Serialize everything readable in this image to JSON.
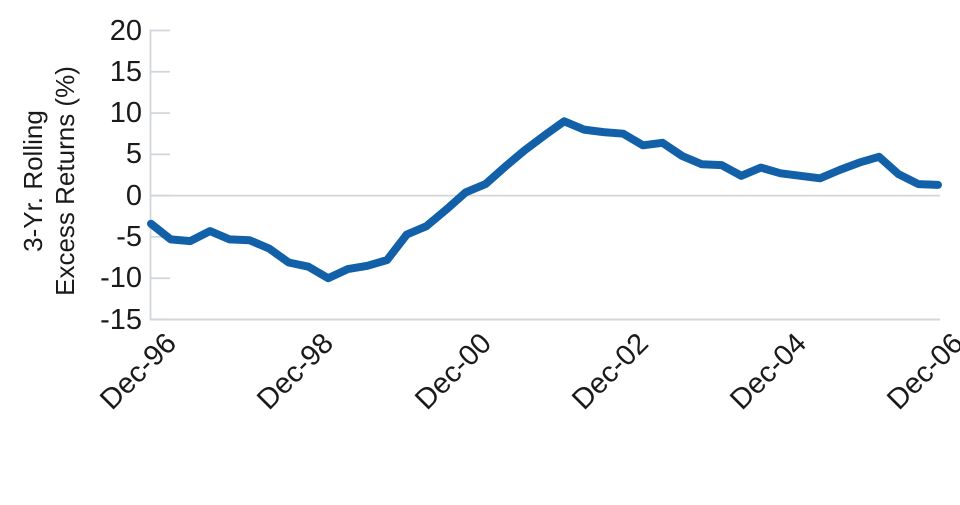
{
  "chart_data": {
    "type": "line",
    "title": "",
    "xlabel": "",
    "ylabel_lines": [
      "3-Yr. Rolling",
      "Excess Returns (%)"
    ],
    "x": [
      "Dec-96",
      "Mar-97",
      "Jun-97",
      "Sep-97",
      "Dec-97",
      "Mar-98",
      "Jun-98",
      "Sep-98",
      "Dec-98",
      "Mar-99",
      "Jun-99",
      "Sep-99",
      "Dec-99",
      "Mar-00",
      "Jun-00",
      "Sep-00",
      "Dec-00",
      "Mar-01",
      "Jun-01",
      "Sep-01",
      "Dec-01",
      "Mar-02",
      "Jun-02",
      "Sep-02",
      "Dec-02",
      "Mar-03",
      "Jun-03",
      "Sep-03",
      "Dec-03",
      "Mar-04",
      "Jun-04",
      "Sep-04",
      "Dec-04",
      "Mar-05",
      "Jun-05",
      "Sep-05",
      "Dec-05",
      "Mar-06",
      "Jun-06",
      "Sep-06",
      "Dec-06"
    ],
    "series": [
      {
        "name": "3-yr rolling excess returns (%)",
        "values": [
          -3.4,
          -5.3,
          -5.5,
          -4.3,
          -5.3,
          -5.4,
          -6.4,
          -8.1,
          -8.6,
          -10.0,
          -8.9,
          -8.5,
          -7.8,
          -4.7,
          -3.7,
          -1.7,
          0.4,
          1.4,
          3.5,
          5.5,
          7.3,
          9.0,
          8.0,
          7.7,
          7.5,
          6.1,
          6.4,
          4.8,
          3.8,
          3.7,
          2.4,
          3.4,
          2.7,
          2.4,
          2.1,
          3.1,
          4.0,
          4.7,
          2.6,
          1.4,
          1.3
        ]
      }
    ],
    "ylim": [
      -15,
      20
    ],
    "y_ticks": [
      20,
      15,
      10,
      5,
      0,
      -5,
      -10,
      -15
    ],
    "x_ticks": [
      "Dec-96",
      "Dec-98",
      "Dec-00",
      "Dec-02",
      "Dec-04",
      "Dec-06"
    ],
    "grid": "horizontal gridline at 0 and bottom baseline only; short inward y ticks",
    "legend": "none",
    "colors": {
      "line": "#1261A8",
      "grid": "#D6D6D6",
      "axis": "#CFD5DB",
      "text": "#1A1A1A",
      "background": "#FFFFFF"
    }
  }
}
